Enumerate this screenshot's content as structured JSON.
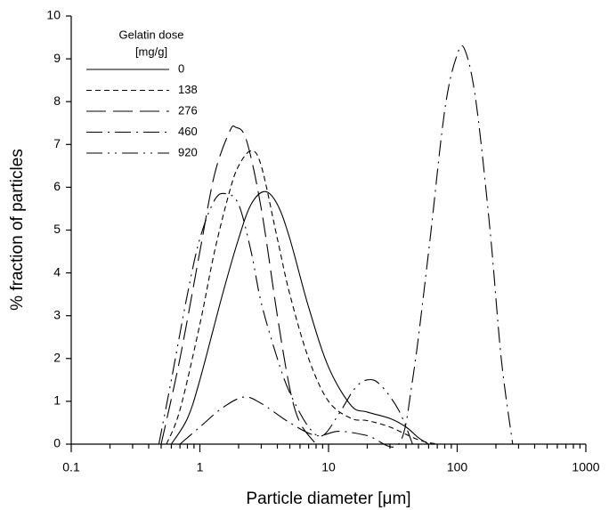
{
  "chart_data": {
    "type": "line",
    "x_label": "Particle diameter [μm]",
    "y_label": "% fraction of particles",
    "legend_title": "Gelatin dose",
    "legend_subtitle": "[mg/g]",
    "xscale": "log",
    "xlim": [
      0.1,
      1000
    ],
    "xticks": [
      0.1,
      1,
      10,
      100,
      1000
    ],
    "ylim": [
      0,
      10
    ],
    "yticks": [
      0,
      1,
      2,
      3,
      4,
      5,
      6,
      7,
      8,
      9,
      10
    ],
    "series": [
      {
        "name": "0",
        "color": "#000000",
        "dash": "none",
        "x": [
          0.6,
          0.8,
          1,
          1.5,
          2,
          2.5,
          3.2,
          4,
          5,
          7,
          10,
          15,
          20,
          30,
          40,
          50,
          60
        ],
        "values": [
          0,
          0.6,
          1.5,
          3.5,
          4.8,
          5.6,
          5.9,
          5.6,
          4.8,
          3.2,
          1.8,
          0.9,
          0.75,
          0.6,
          0.4,
          0.15,
          0
        ]
      },
      {
        "name": "138",
        "color": "#000000",
        "dash": "6,4",
        "x": [
          0.55,
          0.7,
          1,
          1.3,
          1.7,
          2,
          2.5,
          3,
          4,
          5,
          7,
          10,
          15,
          20,
          30,
          50,
          70
        ],
        "values": [
          0,
          0.8,
          2.8,
          4.5,
          5.9,
          6.5,
          6.85,
          6.5,
          4.8,
          3.5,
          2,
          1,
          0.6,
          0.55,
          0.4,
          0.1,
          0
        ]
      },
      {
        "name": "276",
        "color": "#000000",
        "dash": "22,8",
        "x": [
          0.5,
          0.7,
          1,
          1.3,
          1.7,
          1.9,
          2.3,
          3,
          4,
          5,
          6,
          8
        ],
        "values": [
          0,
          2,
          4.5,
          6.3,
          7.3,
          7.4,
          7.1,
          5.5,
          3,
          1.3,
          0.5,
          0
        ]
      },
      {
        "name": "460",
        "color": "#000000",
        "dash": "18,6,2,6",
        "x": [
          0.7,
          1,
          1.5,
          2.2,
          3,
          5,
          8,
          12,
          20,
          35,
          45,
          60,
          80,
          100,
          115,
          140,
          180,
          220,
          270
        ],
        "values": [
          0,
          0.4,
          0.85,
          1.1,
          0.95,
          0.5,
          0.2,
          0.3,
          0.2,
          0,
          1.5,
          4.5,
          7.8,
          9.1,
          9.2,
          8,
          5,
          2,
          0
        ]
      },
      {
        "name": "920",
        "color": "#000000",
        "dash": "18,6,2,6,2,6",
        "x": [
          0.48,
          0.6,
          0.8,
          1,
          1.3,
          1.6,
          2,
          2.5,
          3,
          4,
          5,
          7,
          9,
          12,
          16,
          20,
          25,
          35,
          45
        ],
        "values": [
          0,
          1.5,
          3.5,
          4.8,
          5.7,
          5.85,
          5.6,
          4.5,
          3.3,
          2,
          1.2,
          0.4,
          0.2,
          0.7,
          1.3,
          1.5,
          1.4,
          0.8,
          0
        ]
      }
    ]
  }
}
